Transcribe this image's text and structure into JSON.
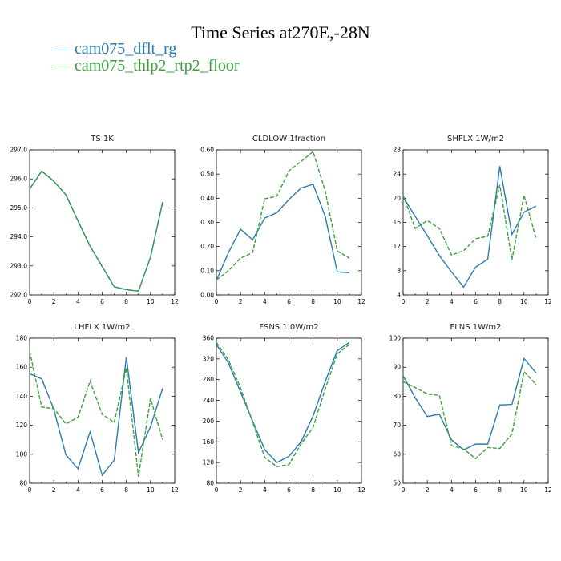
{
  "title": "Time Series at270E,-28N",
  "legend": [
    {
      "label": "cam075_dflt_rg",
      "color": "#2a7ab0",
      "style": "solid"
    },
    {
      "label": "cam075_thlp2_rtp2_floor",
      "color": "#3aa03a",
      "style": "dashed"
    }
  ],
  "chart_data": [
    {
      "type": "line",
      "title": "TS   1K",
      "xlim": [
        0,
        12
      ],
      "ylim": [
        292,
        297
      ],
      "xticks": [
        0,
        2,
        4,
        6,
        8,
        10,
        12
      ],
      "yticks": [
        292,
        293,
        294,
        295,
        296,
        297
      ],
      "ytick_labels": [
        "292.0",
        "293.0",
        "294.0",
        "295.0",
        "296.0",
        "297.0"
      ],
      "x": [
        0,
        1,
        2,
        3,
        4,
        5,
        6,
        7,
        8,
        9,
        10,
        11
      ],
      "series": [
        {
          "name": "cam075_dflt_rg",
          "values": [
            295.65,
            296.27,
            295.92,
            295.45,
            294.55,
            293.68,
            292.98,
            292.28,
            292.18,
            292.13,
            293.3,
            295.2
          ]
        },
        {
          "name": "cam075_thlp2_rtp2_floor",
          "values": [
            295.65,
            296.27,
            295.92,
            295.45,
            294.55,
            293.68,
            292.98,
            292.28,
            292.18,
            292.13,
            293.3,
            295.2
          ]
        }
      ]
    },
    {
      "type": "line",
      "title": "CLDLOW   1fraction",
      "xlim": [
        0,
        12
      ],
      "ylim": [
        0,
        0.6
      ],
      "xticks": [
        0,
        2,
        4,
        6,
        8,
        10,
        12
      ],
      "yticks": [
        0,
        0.1,
        0.2,
        0.3,
        0.4,
        0.5,
        0.6
      ],
      "ytick_labels": [
        "0.00",
        "0.10",
        "0.20",
        "0.30",
        "0.40",
        "0.50",
        "0.60"
      ],
      "x": [
        0,
        1,
        2,
        3,
        4,
        5,
        6,
        7,
        8,
        9,
        10,
        11
      ],
      "series": [
        {
          "name": "cam075_dflt_rg",
          "values": [
            0.06,
            0.175,
            0.272,
            0.228,
            0.318,
            0.34,
            0.395,
            0.442,
            0.458,
            0.325,
            0.095,
            0.092
          ]
        },
        {
          "name": "cam075_thlp2_rtp2_floor",
          "values": [
            0.062,
            0.1,
            0.152,
            0.175,
            0.398,
            0.408,
            0.513,
            0.552,
            0.593,
            0.43,
            0.182,
            0.152
          ]
        }
      ]
    },
    {
      "type": "line",
      "title": "SHFLX   1W/m2",
      "xlim": [
        0,
        12
      ],
      "ylim": [
        4,
        28
      ],
      "xticks": [
        0,
        2,
        4,
        6,
        8,
        10,
        12
      ],
      "yticks": [
        4,
        8,
        12,
        16,
        20,
        24,
        28
      ],
      "ytick_labels": [
        "4",
        "8",
        "12",
        "16",
        "20",
        "24",
        "28"
      ],
      "x": [
        0,
        1,
        2,
        3,
        4,
        5,
        6,
        7,
        8,
        9,
        10,
        11
      ],
      "series": [
        {
          "name": "cam075_dflt_rg",
          "values": [
            20.2,
            17.0,
            13.8,
            10.5,
            7.8,
            5.3,
            8.6,
            9.9,
            25.3,
            14.0,
            17.7,
            18.7
          ]
        },
        {
          "name": "cam075_thlp2_rtp2_floor",
          "values": [
            20.5,
            15.0,
            16.3,
            15.0,
            10.6,
            11.3,
            13.3,
            13.7,
            22.2,
            9.8,
            20.5,
            13.3
          ]
        }
      ]
    },
    {
      "type": "line",
      "title": "LHFLX   1W/m2",
      "xlim": [
        0,
        12
      ],
      "ylim": [
        80,
        180
      ],
      "xticks": [
        0,
        2,
        4,
        6,
        8,
        10,
        12
      ],
      "yticks": [
        80,
        100,
        120,
        140,
        160,
        180
      ],
      "ytick_labels": [
        "80",
        "100",
        "120",
        "140",
        "160",
        "180"
      ],
      "x": [
        0,
        1,
        2,
        3,
        4,
        5,
        6,
        7,
        8,
        9,
        10,
        11
      ],
      "series": [
        {
          "name": "cam075_dflt_rg",
          "values": [
            155.5,
            152.0,
            131.0,
            99.5,
            90.0,
            115.5,
            85.5,
            96.0,
            167.0,
            101.0,
            119.0,
            145.5
          ]
        },
        {
          "name": "cam075_thlp2_rtp2_floor",
          "values": [
            171.0,
            132.5,
            131.5,
            121.0,
            125.5,
            150.5,
            127.5,
            122.0,
            159.5,
            84.5,
            138.5,
            110.0
          ]
        }
      ]
    },
    {
      "type": "line",
      "title": "FSNS   1.0W/m2",
      "xlim": [
        0,
        12
      ],
      "ylim": [
        80,
        360
      ],
      "xticks": [
        0,
        2,
        4,
        6,
        8,
        10,
        12
      ],
      "yticks": [
        80,
        120,
        160,
        200,
        240,
        280,
        320,
        360
      ],
      "ytick_labels": [
        "80",
        "120",
        "160",
        "200",
        "240",
        "280",
        "320",
        "360"
      ],
      "x": [
        0,
        1,
        2,
        3,
        4,
        5,
        6,
        7,
        8,
        9,
        10,
        11
      ],
      "series": [
        {
          "name": "cam075_dflt_rg",
          "values": [
            348,
            312,
            256,
            200,
            145,
            120,
            132,
            160,
            210,
            276,
            336,
            352
          ]
        },
        {
          "name": "cam075_thlp2_rtp2_floor",
          "values": [
            352,
            318,
            264,
            198,
            130,
            112,
            116,
            156,
            188,
            262,
            330,
            348
          ]
        }
      ]
    },
    {
      "type": "line",
      "title": "FLNS   1W/m2",
      "xlim": [
        0,
        12
      ],
      "ylim": [
        50,
        100
      ],
      "xticks": [
        0,
        2,
        4,
        6,
        8,
        10,
        12
      ],
      "yticks": [
        50,
        60,
        70,
        80,
        90,
        100
      ],
      "ytick_labels": [
        "50",
        "60",
        "70",
        "80",
        "90",
        "100"
      ],
      "x": [
        0,
        1,
        2,
        3,
        4,
        5,
        6,
        7,
        8,
        9,
        10,
        11
      ],
      "series": [
        {
          "name": "cam075_dflt_rg",
          "values": [
            87.0,
            79.5,
            73.0,
            73.8,
            65.0,
            61.5,
            63.5,
            63.5,
            77.0,
            77.2,
            93.0,
            88.0
          ]
        },
        {
          "name": "cam075_thlp2_rtp2_floor",
          "values": [
            85.0,
            83.0,
            80.8,
            80.3,
            63.0,
            61.8,
            58.5,
            62.3,
            62.0,
            67.0,
            88.5,
            84.0
          ]
        }
      ]
    }
  ]
}
